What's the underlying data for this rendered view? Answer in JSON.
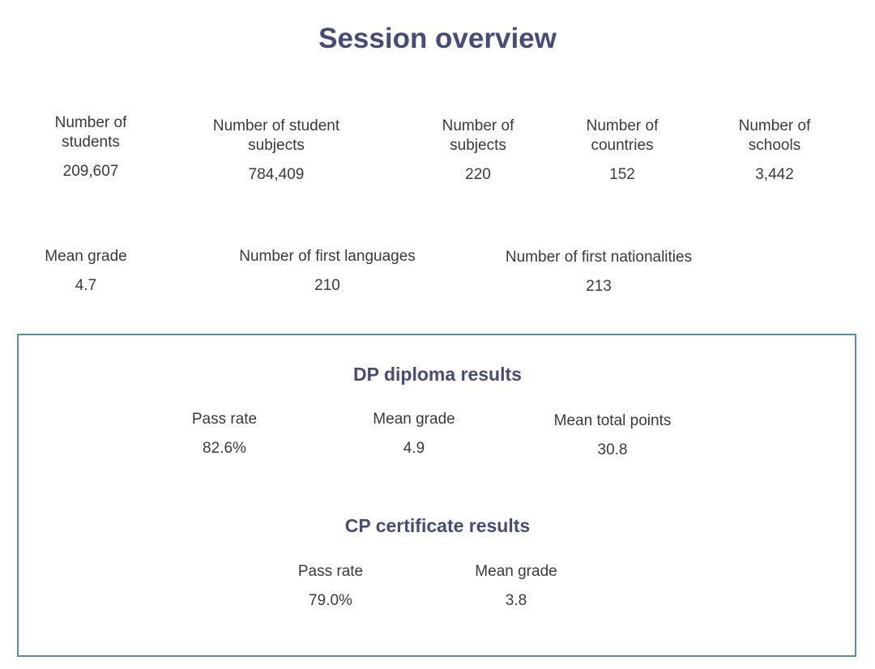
{
  "title": "Session overview",
  "overview": [
    {
      "label": "Number of students",
      "value": "209,607"
    },
    {
      "label": "Number of student subjects",
      "value": "784,409"
    },
    {
      "label": "Number of subjects",
      "value": "220"
    },
    {
      "label": "Number of countries",
      "value": "152"
    },
    {
      "label": "Number of schools",
      "value": "3,442"
    },
    {
      "label": "Mean grade",
      "value": "4.7"
    },
    {
      "label": "Number of first languages",
      "value": "210"
    },
    {
      "label": "Number of first nationalities",
      "value": "213"
    }
  ],
  "dp": {
    "title": "DP diploma results",
    "stats": [
      {
        "label": "Pass rate",
        "value": "82.6%"
      },
      {
        "label": "Mean grade",
        "value": "4.9"
      },
      {
        "label": "Mean total points",
        "value": "30.8"
      }
    ]
  },
  "cp": {
    "title": "CP certificate results",
    "stats": [
      {
        "label": "Pass rate",
        "value": "79.0%"
      },
      {
        "label": "Mean grade",
        "value": "3.8"
      }
    ]
  }
}
